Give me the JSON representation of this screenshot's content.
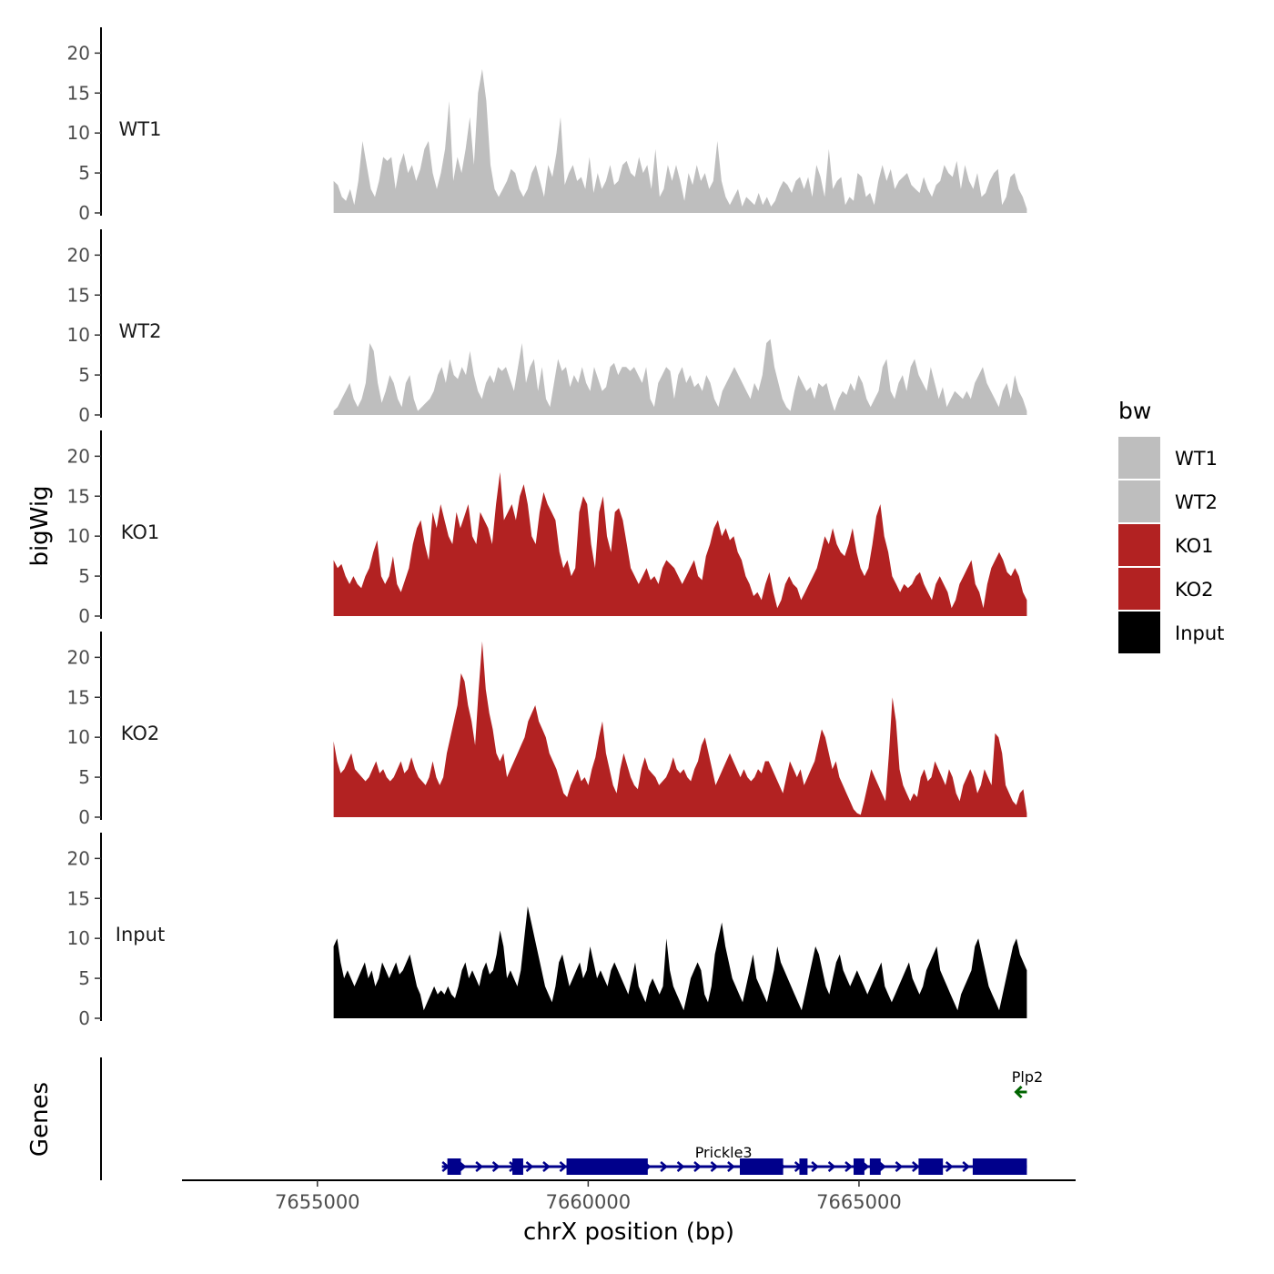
{
  "chart_data": {
    "type": "area",
    "title": "",
    "xlabel": "chrX position (bp)",
    "ylabel": "bigWig",
    "genes_label": "Genes",
    "xlim": [
      7652500,
      7669000
    ],
    "ylim": [
      0,
      23
    ],
    "x_ticks": [
      7655000,
      7660000,
      7665000
    ],
    "x_tick_labels": [
      "7655000",
      "7660000",
      "7665000"
    ],
    "y_ticks": [
      0,
      5,
      10,
      15,
      20
    ],
    "y_tick_labels": [
      "0",
      "5",
      "10",
      "15",
      "20"
    ],
    "legend": {
      "title": "bw",
      "placement": "right",
      "entries": [
        {
          "label": "WT1",
          "color": "#bebebe"
        },
        {
          "label": "WT2",
          "color": "#bebebe"
        },
        {
          "label": "KO1",
          "color": "#b22222"
        },
        {
          "label": "KO2",
          "color": "#b22222"
        },
        {
          "label": "Input",
          "color": "#000000"
        }
      ]
    },
    "x_start": 7655300,
    "x_end": 7668100,
    "series": [
      {
        "name": "WT1",
        "color": "#bebebe",
        "values": [
          4,
          3.5,
          2,
          1.5,
          3,
          1,
          4,
          9,
          6,
          3,
          2,
          4,
          7,
          6.5,
          7,
          3,
          6,
          7.5,
          5,
          6,
          4,
          5.5,
          8,
          9,
          5,
          3,
          5,
          8,
          14,
          4,
          7,
          5,
          8,
          12,
          6,
          15,
          18,
          14,
          6,
          3,
          2,
          3,
          4,
          5.5,
          5,
          3,
          2,
          3,
          5,
          6,
          4,
          2,
          6,
          4.5,
          7.5,
          12,
          3.5,
          5,
          6,
          4,
          4.5,
          3,
          7,
          2.5,
          5,
          3,
          4,
          6,
          3.5,
          4,
          6,
          6.5,
          5,
          4.5,
          7,
          5,
          6,
          3,
          8,
          2,
          3,
          6,
          4,
          6,
          4,
          1.5,
          5,
          3.5,
          6,
          4,
          5,
          3,
          4,
          9,
          4,
          2,
          1,
          2,
          3,
          0.8,
          2,
          1.5,
          1,
          2.5,
          1,
          2,
          0.8,
          1.5,
          3,
          4,
          3.5,
          2.5,
          4,
          4.5,
          3,
          4.5,
          2,
          6,
          4.5,
          2,
          8,
          3,
          4,
          4.5,
          1,
          2,
          1.5,
          5,
          4.5,
          2,
          2.5,
          1,
          4,
          6,
          4,
          5.5,
          3,
          4,
          4.5,
          5,
          3.5,
          3,
          2.5,
          4.5,
          3,
          2,
          3.5,
          4,
          6,
          5,
          4.5,
          6.5,
          3,
          6,
          4,
          3,
          5,
          2,
          2.5,
          4,
          5,
          5.5,
          1,
          2,
          4.5,
          5,
          3,
          2,
          0.5
        ]
      },
      {
        "name": "WT2",
        "color": "#bebebe",
        "values": [
          0.5,
          1,
          2,
          3,
          4,
          2,
          1,
          2,
          4,
          9,
          8,
          4,
          1.5,
          3,
          5,
          4,
          2,
          1,
          4,
          5,
          2,
          0.5,
          1,
          1.5,
          2,
          3,
          5,
          6,
          4,
          7,
          5,
          4.5,
          6,
          5,
          8,
          5,
          3,
          2,
          4,
          5,
          4,
          6,
          5.5,
          6,
          4.5,
          3,
          6,
          9,
          4,
          6,
          7,
          3,
          6,
          2,
          1,
          4,
          7,
          5.5,
          6,
          3.5,
          5,
          4,
          6,
          4,
          3,
          6,
          4.5,
          3,
          3.5,
          6,
          6.5,
          5,
          6,
          6,
          5.5,
          6,
          5,
          4,
          6,
          2,
          1,
          4,
          5,
          6,
          5.5,
          2,
          5,
          6,
          4,
          5,
          3.5,
          4,
          3,
          5,
          4,
          2,
          1,
          3,
          4,
          5,
          6,
          5,
          4,
          3,
          2,
          4,
          3,
          5,
          9,
          9.5,
          6,
          4,
          2,
          1,
          0.5,
          3,
          5,
          4,
          3,
          3.5,
          2,
          4,
          3.5,
          4,
          2,
          0.5,
          2,
          3,
          2.5,
          4,
          3,
          5,
          4,
          2,
          1,
          2,
          3,
          6,
          7,
          3,
          2,
          4,
          5,
          3,
          6,
          7,
          5,
          4,
          3,
          6,
          4,
          2,
          3.5,
          1,
          2,
          3,
          2.5,
          2,
          3,
          2,
          4,
          5,
          6,
          4,
          3,
          2,
          1,
          3,
          4,
          2,
          5,
          3,
          2,
          0.5
        ]
      },
      {
        "name": "KO1",
        "color": "#b22222",
        "values": [
          7,
          6,
          6.5,
          5,
          4,
          5,
          4,
          3.5,
          5,
          6,
          8,
          9.5,
          5,
          4,
          5,
          7.5,
          4,
          3,
          4.5,
          6,
          9,
          11,
          12,
          9,
          7,
          13,
          11,
          14,
          12,
          10,
          9,
          13,
          11,
          12.5,
          14,
          10,
          9,
          13,
          12,
          11,
          9,
          14,
          18,
          12,
          13,
          14,
          12,
          15,
          16.5,
          14,
          10,
          9,
          13,
          15.5,
          14,
          13,
          12,
          8,
          6,
          7,
          5,
          6,
          13,
          15,
          14,
          9,
          6,
          13,
          15,
          10,
          8,
          13,
          13.5,
          12,
          9,
          6,
          5,
          4,
          5,
          6,
          4.5,
          5,
          4,
          6,
          7,
          6.5,
          6,
          5,
          4,
          5,
          6,
          7,
          5,
          4.5,
          7.5,
          9,
          11,
          12,
          10,
          11,
          9.5,
          10,
          8,
          7,
          5,
          4,
          2.5,
          3,
          2,
          4,
          5.5,
          3,
          1,
          2,
          4,
          5,
          4,
          3.5,
          2,
          3,
          4,
          5,
          6,
          8,
          10,
          9,
          11,
          9,
          8,
          7.5,
          9,
          11,
          8,
          6,
          5,
          6,
          9,
          12.5,
          14,
          10,
          8,
          5,
          4,
          3,
          4,
          3.5,
          4,
          5,
          5.5,
          4,
          3,
          2,
          4,
          5,
          4,
          3,
          1,
          2,
          4,
          5,
          6,
          7,
          4,
          3,
          1,
          4,
          6,
          7,
          8,
          7,
          5.5,
          5,
          6,
          5,
          3,
          2
        ]
      },
      {
        "name": "KO2",
        "color": "#b22222",
        "values": [
          9.5,
          7,
          5.5,
          6,
          7,
          8,
          6,
          5.5,
          5,
          4.5,
          5,
          6,
          7,
          5.5,
          6,
          5,
          4.5,
          5,
          6,
          7,
          5.5,
          6,
          7.5,
          6,
          5,
          4.5,
          4,
          5,
          7,
          5,
          4,
          5,
          8,
          10,
          12,
          14,
          18,
          17,
          14,
          12,
          9,
          16,
          22,
          16,
          13,
          11,
          8,
          7,
          8,
          5,
          6,
          7,
          8,
          9,
          10,
          12,
          13,
          14,
          12,
          11,
          10,
          8,
          7,
          6,
          4.5,
          3,
          2.5,
          4,
          5,
          6,
          4.5,
          5,
          4,
          6,
          7.5,
          10,
          12,
          8,
          6,
          4,
          3,
          6,
          8,
          6.5,
          5,
          4,
          3.5,
          6,
          7.5,
          6,
          5.5,
          5,
          4,
          4.5,
          5,
          6,
          7.5,
          6,
          5.5,
          6,
          5,
          4.5,
          6,
          7,
          9,
          10,
          8,
          6,
          4,
          5,
          6,
          7,
          8,
          7,
          6,
          5,
          6,
          5,
          4.5,
          5,
          6,
          5.5,
          7,
          7,
          6,
          5,
          4,
          3,
          5,
          7,
          6,
          5,
          6,
          4,
          5,
          6,
          7,
          9,
          11,
          10,
          8,
          6,
          7,
          5,
          4,
          3,
          2,
          1,
          0.5,
          0.3,
          2,
          4,
          6,
          5,
          4,
          3,
          2,
          8,
          15,
          12,
          6,
          4,
          3,
          2,
          3,
          2.5,
          5,
          6,
          4.5,
          5,
          7,
          6,
          5,
          4,
          6,
          5,
          3,
          2,
          4,
          5,
          6,
          5,
          3,
          4,
          6,
          5,
          4,
          10.5,
          10,
          8,
          4,
          3,
          2,
          1.5,
          3,
          3.5,
          0.5
        ]
      },
      {
        "name": "Input",
        "color": "#000000",
        "values": [
          9,
          10,
          7,
          5,
          6,
          5,
          4,
          5,
          6,
          7,
          5,
          6,
          4,
          5,
          7,
          6,
          5,
          6,
          7,
          5.5,
          6,
          7,
          8,
          6,
          4,
          3,
          1,
          2,
          3,
          4,
          3,
          3.5,
          3,
          4,
          3,
          2.5,
          4,
          6,
          7,
          5,
          6,
          5,
          4,
          6,
          7,
          5.5,
          6,
          8,
          11,
          9,
          5,
          6,
          5,
          4,
          6,
          10,
          14,
          12,
          10,
          8,
          6,
          4,
          3,
          2,
          4,
          7,
          8,
          6,
          4,
          5,
          6,
          7,
          5,
          6,
          9,
          7,
          5,
          6,
          5,
          4,
          6,
          7,
          6,
          5,
          4,
          3,
          5,
          7,
          4,
          3,
          2,
          4,
          5,
          4,
          3,
          4,
          10,
          6,
          4,
          3,
          2,
          1,
          3,
          5,
          6,
          7,
          6,
          3,
          2,
          4,
          8,
          10,
          12,
          9,
          7,
          5,
          4,
          3,
          2,
          4,
          6,
          8,
          5,
          4,
          3,
          2,
          4,
          6,
          9,
          7,
          6,
          5,
          4,
          3,
          2,
          1,
          3,
          5,
          7,
          9,
          8,
          6,
          4,
          3,
          5,
          7,
          8,
          6,
          5,
          4,
          5,
          6,
          5,
          4,
          3,
          4,
          5,
          6,
          7,
          4,
          3,
          2,
          3,
          4,
          5,
          6,
          7,
          5,
          4,
          3,
          4,
          6,
          7,
          8,
          9,
          6,
          5,
          4,
          3,
          2,
          1,
          3,
          4,
          5,
          6,
          9,
          10,
          8,
          6,
          4,
          3,
          2,
          1,
          3,
          5,
          7,
          9,
          10,
          8,
          7,
          6
        ]
      }
    ],
    "genes": [
      {
        "name": "Prickle3",
        "strand": "+",
        "color": "#00008b",
        "start": 7657300,
        "end": 7668100,
        "exons": [
          [
            7657400,
            7657650
          ],
          [
            7658600,
            7658800
          ],
          [
            7659600,
            7661100
          ],
          [
            7662800,
            7663600
          ],
          [
            7663900,
            7664050
          ],
          [
            7664900,
            7665100
          ],
          [
            7665200,
            7665400
          ],
          [
            7666100,
            7666550
          ],
          [
            7667100,
            7668100
          ]
        ]
      },
      {
        "name": "Plp2",
        "strand": "-",
        "color": "#006400",
        "start": 7667900,
        "end": 7668100,
        "exons": []
      }
    ]
  }
}
